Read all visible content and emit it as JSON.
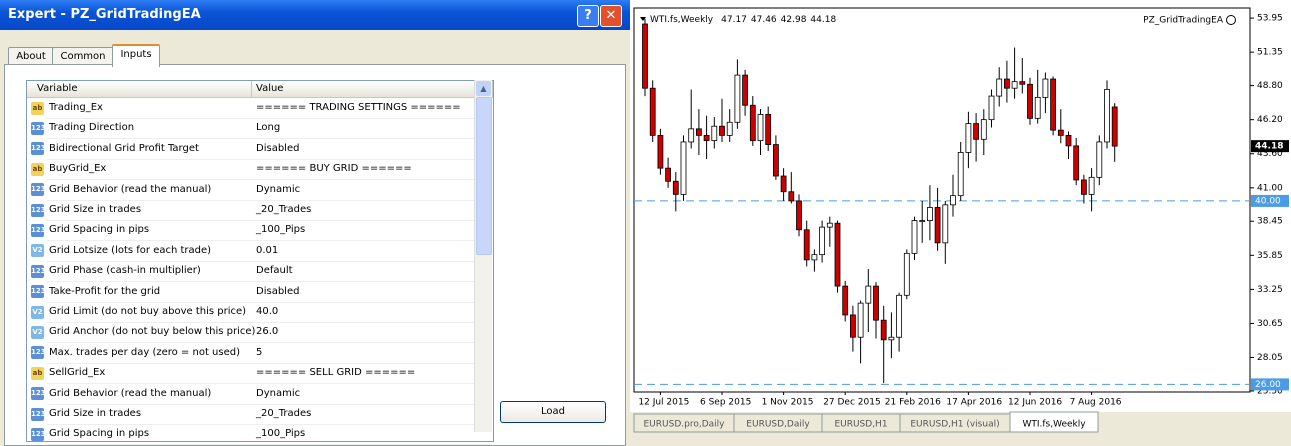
{
  "dialog": {
    "title": "Expert - PZ_GridTradingEA",
    "tabs": [
      "About",
      "Common",
      "Inputs"
    ],
    "table": {
      "header": [
        "Variable",
        "Value"
      ],
      "rows": [
        {
          "icon": "ab",
          "variable": "Trading_Ex",
          "value": "====== TRADING SETTINGS ======"
        },
        {
          "icon": "123",
          "variable": "Trading Direction",
          "value": "Long"
        },
        {
          "icon": "123",
          "variable": "Bidirectional Grid Profit Target",
          "value": "Disabled"
        },
        {
          "icon": "ab",
          "variable": "BuyGrid_Ex",
          "value": "====== BUY GRID ======"
        },
        {
          "icon": "123",
          "variable": "Grid Behavior (read the manual)",
          "value": "Dynamic"
        },
        {
          "icon": "123",
          "variable": "Grid Size in trades",
          "value": "_20_Trades"
        },
        {
          "icon": "123",
          "variable": "Grid Spacing in pips",
          "value": "_100_Pips"
        },
        {
          "icon": "V2",
          "variable": "Grid Lotsize (lots for each trade)",
          "value": "0.01"
        },
        {
          "icon": "123",
          "variable": "Grid Phase (cash-in multiplier)",
          "value": "Default"
        },
        {
          "icon": "123",
          "variable": "Take-Profit for the grid",
          "value": "Disabled"
        },
        {
          "icon": "V2",
          "variable": "Grid Limit (do not buy above this price)",
          "value": "40.0"
        },
        {
          "icon": "V2",
          "variable": "Grid Anchor (do not buy below this price)",
          "value": "26.0"
        },
        {
          "icon": "123",
          "variable": "Max. trades per day (zero = not used)",
          "value": "5"
        },
        {
          "icon": "ab",
          "variable": "SellGrid_Ex",
          "value": "====== SELL GRID ======"
        },
        {
          "icon": "123",
          "variable": "Grid Behavior (read the manual)",
          "value": "Dynamic"
        },
        {
          "icon": "123",
          "variable": "Grid Size in trades",
          "value": "_20_Trades"
        },
        {
          "icon": "123",
          "variable": "Grid Spacing in pips",
          "value": "_100_Pips"
        }
      ]
    },
    "button": "Load"
  },
  "chart": {
    "type": "candlestick",
    "symbol": "WTI.fs,Weekly",
    "expert": "PZ_GridTradingEA",
    "categories": [
      null,
      null,
      "12 Jul 2015",
      null,
      null,
      null,
      null,
      null,
      null,
      null,
      "6 Sep 2015",
      null,
      null,
      null,
      null,
      null,
      null,
      null,
      "1 Nov 2015",
      null,
      null,
      null,
      null,
      null,
      null,
      null,
      "27 Dec 2015",
      null,
      null,
      null,
      null,
      null,
      null,
      null,
      "21 Feb 2016",
      null,
      null,
      null,
      null,
      null,
      null,
      null,
      "17 Apr 2016",
      null,
      null,
      null,
      null,
      null,
      null,
      null,
      "12 Jun 2016",
      null,
      null,
      null,
      null,
      null,
      null,
      null,
      "7 Aug 2016",
      null,
      null,
      null
    ],
    "open": [
      53.5,
      48.6,
      45.0,
      42.5,
      41.5,
      40.5,
      44.5,
      45.5,
      45.0,
      44.6,
      45.7,
      45.0,
      46.0,
      49.6,
      47.3,
      44.6,
      46.6,
      44.3,
      41.9,
      40.7,
      40.0,
      37.8,
      35.5,
      35.9,
      38.0,
      38.3,
      33.5,
      31.3,
      29.6,
      32.2,
      33.5,
      30.9,
      29.4,
      29.6,
      32.8,
      36.0,
      38.5,
      38.5,
      39.5,
      36.8,
      39.7,
      40.4,
      43.7,
      45.9,
      44.7,
      46.2,
      48.0,
      49.3,
      48.6,
      49.1,
      48.9,
      46.3,
      47.9,
      49.3,
      45.4,
      45.0,
      44.2,
      41.6,
      40.5,
      41.8,
      44.5,
      47.17
    ],
    "high": [
      53.9,
      49.2,
      45.5,
      43.3,
      42.2,
      45.0,
      48.5,
      47.0,
      46.5,
      46.4,
      47.8,
      47.0,
      50.8,
      50.0,
      48.0,
      47.0,
      47.2,
      45.0,
      42.5,
      42.2,
      40.5,
      38.5,
      36.3,
      38.5,
      38.8,
      38.5,
      33.9,
      32.0,
      32.4,
      34.8,
      33.8,
      32.0,
      31.5,
      33.0,
      36.3,
      38.8,
      40.0,
      41.2,
      41.0,
      40.0,
      42.0,
      44.5,
      46.8,
      46.7,
      47.0,
      48.5,
      50.2,
      50.7,
      51.7,
      50.9,
      49.4,
      50.0,
      49.8,
      49.5,
      47.0,
      45.3,
      44.8,
      42.0,
      42.5,
      45.0,
      49.2,
      47.46
    ],
    "low": [
      48.0,
      44.5,
      42.0,
      41.0,
      39.2,
      40.0,
      44.0,
      43.5,
      43.2,
      44.0,
      44.5,
      44.5,
      45.5,
      46.5,
      44.2,
      43.5,
      43.8,
      41.6,
      40.0,
      39.8,
      37.3,
      35.0,
      34.6,
      35.3,
      36.5,
      33.0,
      30.8,
      28.5,
      27.6,
      30.0,
      29.5,
      26.1,
      28.0,
      28.5,
      32.5,
      35.5,
      36.8,
      37.0,
      36.2,
      35.2,
      38.8,
      40.0,
      42.5,
      43.0,
      43.5,
      45.6,
      47.2,
      47.5,
      47.8,
      48.2,
      45.8,
      45.9,
      46.7,
      45.0,
      44.4,
      43.2,
      41.2,
      39.8,
      39.2,
      41.2,
      44.0,
      42.98
    ],
    "close": [
      48.6,
      45.0,
      42.5,
      41.5,
      40.5,
      44.5,
      45.5,
      45.0,
      44.6,
      45.7,
      45.0,
      46.0,
      49.6,
      47.3,
      44.6,
      46.6,
      44.3,
      41.9,
      40.7,
      40.0,
      37.8,
      35.5,
      35.9,
      38.0,
      38.3,
      33.5,
      31.3,
      29.6,
      32.2,
      33.5,
      30.9,
      29.4,
      29.6,
      32.8,
      36.0,
      38.5,
      38.5,
      39.5,
      36.8,
      39.7,
      40.4,
      43.7,
      45.9,
      44.7,
      46.2,
      48.0,
      49.3,
      48.6,
      49.1,
      48.9,
      46.3,
      47.9,
      49.3,
      45.4,
      45.0,
      44.2,
      41.6,
      40.5,
      41.8,
      44.5,
      48.5,
      44.18
    ],
    "ylim": [
      25.42,
      54.72
    ],
    "yticks": [
      53.95,
      51.35,
      {
        "value": 48.8,
        "label": "48.80"
      },
      {
        "value": 46.2,
        "label": "46.20"
      },
      {
        "value": 43.6,
        "label": "43.60"
      },
      {
        "value": 41,
        "label": "41.00"
      },
      38.45,
      35.85,
      33.25,
      30.65,
      28.05,
      {
        "value": 25.5,
        "label": "25.50"
      }
    ],
    "levels": [
      {
        "value": 40,
        "label": "40.00"
      },
      {
        "value": 26,
        "label": "26.00"
      }
    ],
    "up_color": "#ffffff",
    "down_color": "#cc0000",
    "level_color": "#4a9be8",
    "tabs": [
      "EURUSD.pro,Daily",
      "EURUSD,Daily",
      "EURUSD,H1",
      "EURUSD,H1 (visual)",
      "WTI.fs,Weekly"
    ],
    "active_tab": 4
  }
}
